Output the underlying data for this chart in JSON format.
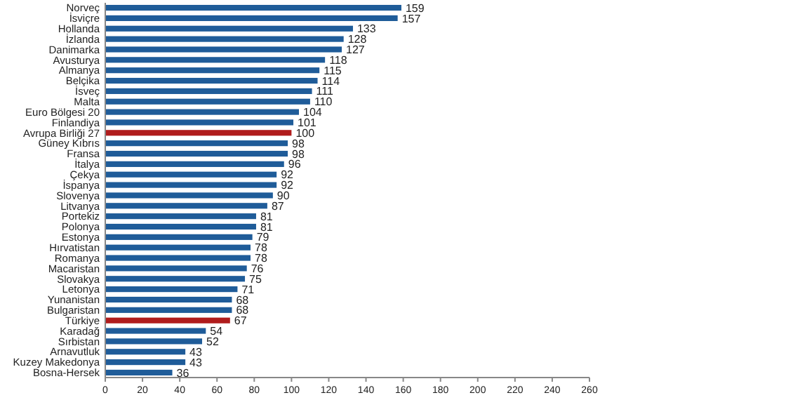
{
  "chart_data": {
    "type": "bar",
    "orientation": "horizontal",
    "categories": [
      "Norveç",
      "İsviçre",
      "Hollanda",
      "İzlanda",
      "Danimarka",
      "Avusturya",
      "Almanya",
      "Belçika",
      "İsveç",
      "Malta",
      "Euro Bölgesi 20",
      "Finlandiya",
      "Avrupa Birliği 27",
      "Güney Kıbrıs",
      "Fransa",
      "İtalya",
      "Çekya",
      "İspanya",
      "Slovenya",
      "Litvanya",
      "Portekiz",
      "Polonya",
      "Estonya",
      "Hırvatistan",
      "Romanya",
      "Macaristan",
      "Slovakya",
      "Letonya",
      "Yunanistan",
      "Bulgaristan",
      "Türkiye",
      "Karadağ",
      "Sırbistan",
      "Arnavutluk",
      "Kuzey Makedonya",
      "Bosna-Hersek"
    ],
    "values": [
      159,
      157,
      133,
      128,
      127,
      118,
      115,
      114,
      111,
      110,
      104,
      101,
      100,
      98,
      98,
      96,
      92,
      92,
      90,
      87,
      81,
      81,
      79,
      78,
      78,
      76,
      75,
      71,
      68,
      68,
      67,
      54,
      52,
      43,
      43,
      36
    ],
    "colors": [
      "#1f5c99",
      "#1f5c99",
      "#1f5c99",
      "#1f5c99",
      "#1f5c99",
      "#1f5c99",
      "#1f5c99",
      "#1f5c99",
      "#1f5c99",
      "#1f5c99",
      "#1f5c99",
      "#1f5c99",
      "#b01c1c",
      "#1f5c99",
      "#1f5c99",
      "#1f5c99",
      "#1f5c99",
      "#1f5c99",
      "#1f5c99",
      "#1f5c99",
      "#1f5c99",
      "#1f5c99",
      "#1f5c99",
      "#1f5c99",
      "#1f5c99",
      "#1f5c99",
      "#1f5c99",
      "#1f5c99",
      "#1f5c99",
      "#1f5c99",
      "#b01c1c",
      "#1f5c99",
      "#1f5c99",
      "#1f5c99",
      "#1f5c99",
      "#1f5c99"
    ],
    "xlim": [
      0,
      260
    ],
    "xticks": [
      0,
      20,
      40,
      60,
      80,
      100,
      120,
      140,
      160,
      180,
      200,
      220,
      240,
      260
    ],
    "data_labels": true
  }
}
